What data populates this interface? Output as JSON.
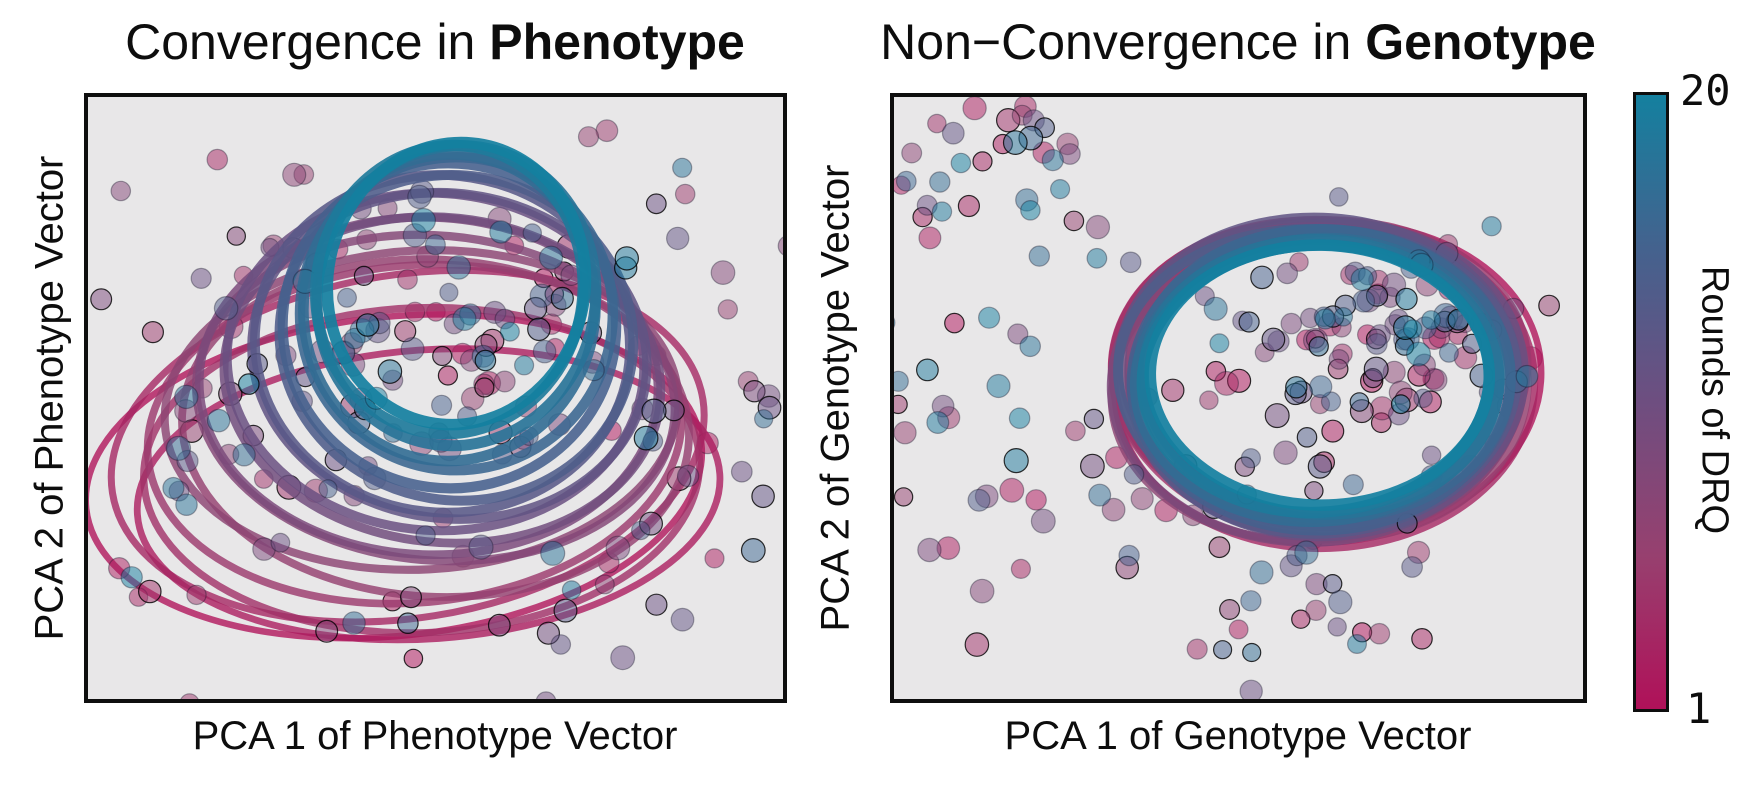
{
  "figure": {
    "background": "#ffffff",
    "axes_background": "#e8e7e8",
    "border_color": "#0e0e0e"
  },
  "colorbar": {
    "label": "Rounds of DRQ",
    "tick_max": "20",
    "tick_min": "1",
    "min": 1,
    "max": 20,
    "orientation": "vertical",
    "stops": [
      {
        "t": 0.0,
        "color": "#b01159"
      },
      {
        "t": 0.25,
        "color": "#97406f"
      },
      {
        "t": 0.5,
        "color": "#6e4e80"
      },
      {
        "t": 0.75,
        "color": "#44628e"
      },
      {
        "t": 1.0,
        "color": "#14809f"
      }
    ]
  },
  "chart_data": [
    {
      "id": "phenotype",
      "type": "scatter",
      "title": {
        "regular": "Convergence in ",
        "bold": "Phenotype"
      },
      "xlabel": "PCA 1 of Phenotype Vector",
      "ylabel": "PCA 2 of Phenotype Vector",
      "ticks": "none",
      "grid": false,
      "rounds_range": [
        1,
        20
      ],
      "description": "Per-round covariance ellipses shrink and drift upward with round number (crimson round 1 large/low, teal round 20 small/high), indicating convergence; scatter points are individuals colored by round.",
      "ellipses": [
        {
          "round": 1,
          "cx": 0.44,
          "cy": 0.63,
          "rx": 0.445,
          "ry": 0.265,
          "angle": -6
        },
        {
          "round": 2,
          "cx": 0.49,
          "cy": 0.66,
          "rx": 0.42,
          "ry": 0.24,
          "angle": -4
        },
        {
          "round": 3,
          "cx": 0.46,
          "cy": 0.58,
          "rx": 0.43,
          "ry": 0.285,
          "angle": -9
        },
        {
          "round": 4,
          "cx": 0.48,
          "cy": 0.62,
          "rx": 0.4,
          "ry": 0.27,
          "angle": -2
        },
        {
          "round": 5,
          "cx": 0.47,
          "cy": 0.56,
          "rx": 0.385,
          "ry": 0.28,
          "angle": -5
        },
        {
          "round": 6,
          "cx": 0.5,
          "cy": 0.55,
          "rx": 0.365,
          "ry": 0.28,
          "angle": 3
        },
        {
          "round": 7,
          "cx": 0.48,
          "cy": 0.52,
          "rx": 0.37,
          "ry": 0.265,
          "angle": -3
        },
        {
          "round": 8,
          "cx": 0.5,
          "cy": 0.5,
          "rx": 0.345,
          "ry": 0.27,
          "angle": 5
        },
        {
          "round": 9,
          "cx": 0.49,
          "cy": 0.48,
          "rx": 0.33,
          "ry": 0.28,
          "angle": 2
        },
        {
          "round": 10,
          "cx": 0.51,
          "cy": 0.47,
          "rx": 0.315,
          "ry": 0.27,
          "angle": 6
        },
        {
          "round": 11,
          "cx": 0.5,
          "cy": 0.44,
          "rx": 0.3,
          "ry": 0.28,
          "angle": 4
        },
        {
          "round": 12,
          "cx": 0.52,
          "cy": 0.43,
          "rx": 0.285,
          "ry": 0.27,
          "angle": 8
        },
        {
          "round": 13,
          "cx": 0.51,
          "cy": 0.41,
          "rx": 0.27,
          "ry": 0.28,
          "angle": 6
        },
        {
          "round": 14,
          "cx": 0.53,
          "cy": 0.4,
          "rx": 0.255,
          "ry": 0.27,
          "angle": 9
        },
        {
          "round": 15,
          "cx": 0.52,
          "cy": 0.38,
          "rx": 0.24,
          "ry": 0.27,
          "angle": 7
        },
        {
          "round": 16,
          "cx": 0.53,
          "cy": 0.36,
          "rx": 0.225,
          "ry": 0.26,
          "angle": 10
        },
        {
          "round": 17,
          "cx": 0.52,
          "cy": 0.35,
          "rx": 0.21,
          "ry": 0.255,
          "angle": 8
        },
        {
          "round": 18,
          "cx": 0.53,
          "cy": 0.33,
          "rx": 0.2,
          "ry": 0.25,
          "angle": 12
        },
        {
          "round": 19,
          "cx": 0.52,
          "cy": 0.32,
          "rx": 0.192,
          "ry": 0.24,
          "angle": 10
        },
        {
          "round": 20,
          "cx": 0.53,
          "cy": 0.31,
          "rx": 0.185,
          "ry": 0.235,
          "angle": 11
        }
      ],
      "scatter_clusters": [
        {
          "cx": 0.55,
          "cy": 0.33,
          "sx": 0.16,
          "sy": 0.12,
          "n": 85
        },
        {
          "cx": 0.48,
          "cy": 0.57,
          "sx": 0.21,
          "sy": 0.13,
          "n": 65
        },
        {
          "cx": 0.13,
          "cy": 0.52,
          "sx": 0.1,
          "sy": 0.22,
          "n": 22
        },
        {
          "cx": 0.5,
          "cy": 0.85,
          "sx": 0.24,
          "sy": 0.07,
          "n": 18
        },
        {
          "cx": 0.9,
          "cy": 0.5,
          "sx": 0.07,
          "sy": 0.22,
          "n": 15
        }
      ],
      "seed": 42
    },
    {
      "id": "genotype",
      "type": "scatter",
      "title": {
        "regular": "Non−Convergence in ",
        "bold": "Genotype"
      },
      "xlabel": "PCA 1 of Genotype Vector",
      "ylabel": "PCA 2 of Genotype Vector",
      "ticks": "none",
      "grid": false,
      "rounds_range": [
        1,
        20
      ],
      "description": "Per-round covariance ellipses of all 20 rounds overlap in one thick ring (crimson through teal stacked), indicating no convergence in genotype space; scatter points are individuals colored by round.",
      "ellipses": [
        {
          "round": 1,
          "cx": 0.63,
          "cy": 0.475,
          "rx": 0.31,
          "ry": 0.265,
          "angle": -6
        },
        {
          "round": 2,
          "cx": 0.615,
          "cy": 0.46,
          "rx": 0.3,
          "ry": 0.255,
          "angle": 4
        },
        {
          "round": 3,
          "cx": 0.625,
          "cy": 0.48,
          "rx": 0.305,
          "ry": 0.27,
          "angle": -2
        },
        {
          "round": 4,
          "cx": 0.61,
          "cy": 0.47,
          "rx": 0.295,
          "ry": 0.26,
          "angle": 7
        },
        {
          "round": 5,
          "cx": 0.62,
          "cy": 0.455,
          "rx": 0.3,
          "ry": 0.25,
          "angle": -4
        },
        {
          "round": 6,
          "cx": 0.63,
          "cy": 0.47,
          "rx": 0.29,
          "ry": 0.265,
          "angle": 3
        },
        {
          "round": 7,
          "cx": 0.615,
          "cy": 0.48,
          "rx": 0.3,
          "ry": 0.255,
          "angle": -7
        },
        {
          "round": 8,
          "cx": 0.625,
          "cy": 0.465,
          "rx": 0.285,
          "ry": 0.26,
          "angle": 5
        },
        {
          "round": 9,
          "cx": 0.61,
          "cy": 0.475,
          "rx": 0.295,
          "ry": 0.265,
          "angle": -3
        },
        {
          "round": 10,
          "cx": 0.62,
          "cy": 0.46,
          "rx": 0.29,
          "ry": 0.25,
          "angle": 6
        },
        {
          "round": 11,
          "cx": 0.63,
          "cy": 0.47,
          "rx": 0.285,
          "ry": 0.26,
          "angle": -5
        },
        {
          "round": 12,
          "cx": 0.615,
          "cy": 0.455,
          "rx": 0.29,
          "ry": 0.255,
          "angle": 2
        },
        {
          "round": 13,
          "cx": 0.625,
          "cy": 0.475,
          "rx": 0.28,
          "ry": 0.25,
          "angle": -6
        },
        {
          "round": 14,
          "cx": 0.61,
          "cy": 0.465,
          "rx": 0.285,
          "ry": 0.245,
          "angle": 4
        },
        {
          "round": 15,
          "cx": 0.62,
          "cy": 0.47,
          "rx": 0.275,
          "ry": 0.25,
          "angle": -2
        },
        {
          "round": 16,
          "cx": 0.625,
          "cy": 0.46,
          "rx": 0.27,
          "ry": 0.24,
          "angle": 3
        },
        {
          "round": 17,
          "cx": 0.615,
          "cy": 0.47,
          "rx": 0.265,
          "ry": 0.235,
          "angle": -4
        },
        {
          "round": 18,
          "cx": 0.62,
          "cy": 0.465,
          "rx": 0.258,
          "ry": 0.228,
          "angle": 2
        },
        {
          "round": 19,
          "cx": 0.612,
          "cy": 0.468,
          "rx": 0.252,
          "ry": 0.222,
          "angle": -3
        },
        {
          "round": 20,
          "cx": 0.618,
          "cy": 0.462,
          "rx": 0.246,
          "ry": 0.216,
          "angle": 1
        }
      ],
      "scatter_clusters": [
        {
          "cx": 0.72,
          "cy": 0.42,
          "sx": 0.11,
          "sy": 0.09,
          "n": 115
        },
        {
          "cx": 0.15,
          "cy": 0.1,
          "sx": 0.08,
          "sy": 0.06,
          "n": 32
        },
        {
          "cx": 0.12,
          "cy": 0.55,
          "sx": 0.09,
          "sy": 0.2,
          "n": 28
        },
        {
          "cx": 0.62,
          "cy": 0.84,
          "sx": 0.09,
          "sy": 0.07,
          "n": 24
        },
        {
          "cx": 0.55,
          "cy": 0.56,
          "sx": 0.14,
          "sy": 0.11,
          "n": 28
        },
        {
          "cx": 0.33,
          "cy": 0.68,
          "sx": 0.07,
          "sy": 0.1,
          "n": 12
        }
      ],
      "seed": 1337
    }
  ]
}
